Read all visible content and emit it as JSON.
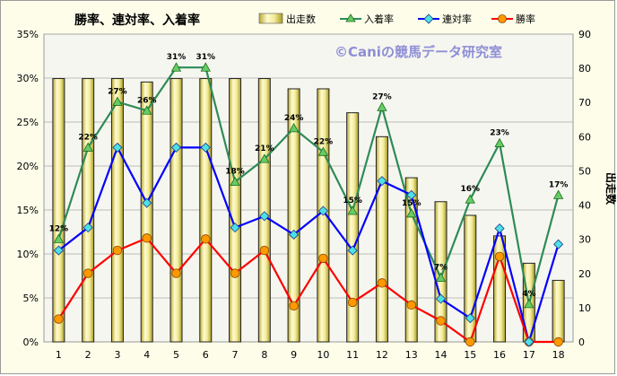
{
  "chart_data": {
    "type": "bar+line",
    "title": "勝率、連対率、入着率",
    "watermark": "©Caniの競馬データ研究室",
    "categories": [
      "1",
      "2",
      "3",
      "4",
      "5",
      "6",
      "7",
      "8",
      "9",
      "10",
      "11",
      "12",
      "13",
      "14",
      "15",
      "16",
      "17",
      "18"
    ],
    "bar_series": {
      "name": "出走数",
      "axis": "right",
      "color": "#e8e48a",
      "values": [
        77,
        77,
        77,
        76,
        77,
        77,
        77,
        77,
        74,
        74,
        67,
        60,
        48,
        41,
        37,
        31,
        23,
        18
      ]
    },
    "line_series": [
      {
        "name": "入着率",
        "axis": "left",
        "color": "#2e8b57",
        "marker": "triangle",
        "values": [
          11.7,
          22.1,
          27.3,
          26.3,
          31.2,
          31.2,
          18.2,
          20.8,
          24.3,
          21.6,
          14.9,
          26.7,
          14.6,
          7.3,
          16.2,
          22.6,
          4.3,
          16.7
        ],
        "labels": [
          "12%",
          "22%",
          "27%",
          "26%",
          "31%",
          "31%",
          "18%",
          "21%",
          "24%",
          "22%",
          "15%",
          "27%",
          "15%",
          "7%",
          "16%",
          "23%",
          "4%",
          "17%"
        ]
      },
      {
        "name": "連対率",
        "axis": "left",
        "color": "#0000ff",
        "marker": "diamond",
        "values": [
          10.4,
          13.0,
          22.1,
          15.8,
          22.1,
          22.1,
          13.0,
          14.3,
          12.2,
          14.9,
          10.4,
          18.3,
          16.7,
          4.9,
          2.7,
          12.9,
          0,
          11.1
        ]
      },
      {
        "name": "勝率",
        "axis": "left",
        "color": "#ff0000",
        "marker": "circle",
        "values": [
          2.6,
          7.8,
          10.4,
          11.8,
          7.8,
          11.7,
          7.8,
          10.4,
          4.1,
          9.5,
          4.5,
          6.7,
          4.2,
          2.4,
          0,
          9.7,
          0,
          0
        ]
      }
    ],
    "y_left": {
      "ylim": [
        0,
        35
      ],
      "ticks": [
        0,
        5,
        10,
        15,
        20,
        25,
        30,
        35
      ],
      "tick_labels": [
        "0%",
        "5%",
        "10%",
        "15%",
        "20%",
        "25%",
        "30%",
        "35%"
      ]
    },
    "y_right": {
      "label": "出走数",
      "ylim": [
        0,
        90
      ],
      "ticks": [
        0,
        10,
        20,
        30,
        40,
        50,
        60,
        70,
        80,
        90
      ],
      "tick_labels": [
        "0",
        "10",
        "20",
        "30",
        "40",
        "50",
        "60",
        "70",
        "80",
        "90"
      ]
    },
    "grid": true,
    "legend_position": "top"
  }
}
